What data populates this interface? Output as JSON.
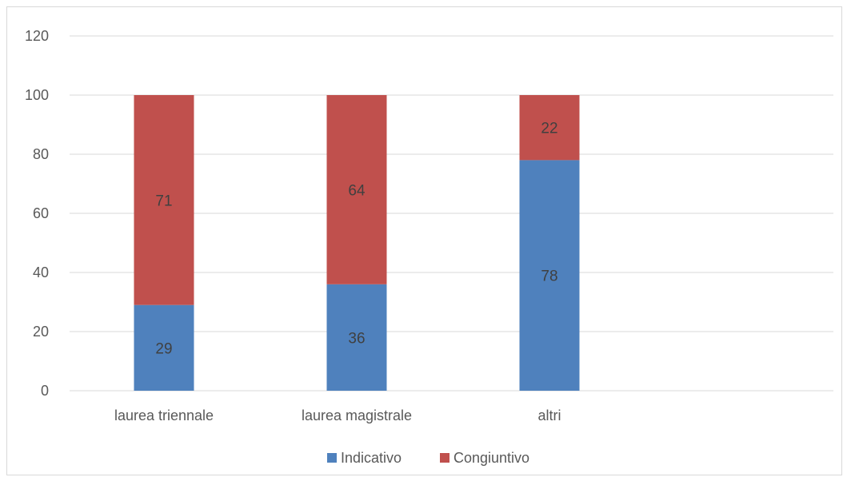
{
  "chart_data": {
    "type": "bar",
    "stacked": true,
    "categories": [
      "laurea triennale",
      "laurea magistrale",
      "altri"
    ],
    "series": [
      {
        "name": "Indicativo",
        "values": [
          29,
          36,
          78
        ],
        "color": "#4f81bd"
      },
      {
        "name": "Congiuntivo",
        "values": [
          71,
          64,
          22
        ],
        "color": "#c0504d"
      }
    ],
    "title": "",
    "xlabel": "",
    "ylabel": "",
    "ylim": [
      0,
      120
    ],
    "yticks": [
      "0",
      "20",
      "40",
      "60",
      "80",
      "100",
      "120"
    ],
    "grid": true,
    "legend": "bottom",
    "data_labels": true
  }
}
